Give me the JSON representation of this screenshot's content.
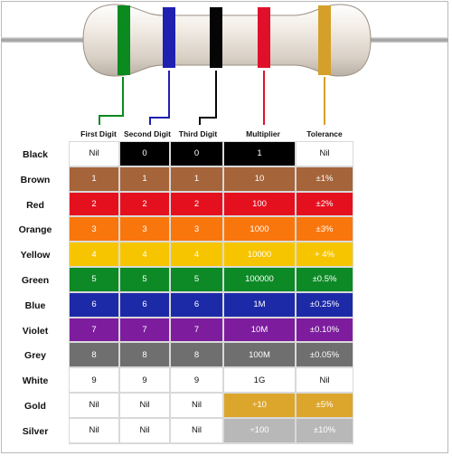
{
  "headers": {
    "first_digit": "First Digit",
    "second_digit": "Second Digit",
    "third_digit": "Third Digit",
    "multiplier": "Multiplier",
    "tolerance": "Tolerance"
  },
  "resistor_bands": [
    "#0a8a1f",
    "#1f1fb0",
    "#050505",
    "#e0102a",
    "#d4a02a"
  ],
  "rows": [
    {
      "name": "Black",
      "digits": [
        "Nil",
        "0",
        "0"
      ],
      "multiplier": "1",
      "tolerance": "Nil"
    },
    {
      "name": "Brown",
      "digits": [
        "1",
        "1",
        "1"
      ],
      "multiplier": "10",
      "tolerance": "±1%"
    },
    {
      "name": "Red",
      "digits": [
        "2",
        "2",
        "2"
      ],
      "multiplier": "100",
      "tolerance": "±2%"
    },
    {
      "name": "Orange",
      "digits": [
        "3",
        "3",
        "3"
      ],
      "multiplier": "1000",
      "tolerance": "±3%"
    },
    {
      "name": "Yellow",
      "digits": [
        "4",
        "4",
        "4"
      ],
      "multiplier": "10000",
      "tolerance": "+ 4%"
    },
    {
      "name": "Green",
      "digits": [
        "5",
        "5",
        "5"
      ],
      "multiplier": "100000",
      "tolerance": "±0.5%"
    },
    {
      "name": "Blue",
      "digits": [
        "6",
        "6",
        "6"
      ],
      "multiplier": "1M",
      "tolerance": "±0.25%"
    },
    {
      "name": "Violet",
      "digits": [
        "7",
        "7",
        "7"
      ],
      "multiplier": "10M",
      "tolerance": "±0.10%"
    },
    {
      "name": "Grey",
      "digits": [
        "8",
        "8",
        "8"
      ],
      "multiplier": "100M",
      "tolerance": "±0.05%"
    },
    {
      "name": "White",
      "digits": [
        "9",
        "9",
        "9"
      ],
      "multiplier": "1G",
      "tolerance": "Nil"
    },
    {
      "name": "Gold",
      "digits": [
        "Nil",
        "Nil",
        "Nil"
      ],
      "multiplier": "÷10",
      "tolerance": "±5%"
    },
    {
      "name": "Silver",
      "digits": [
        "Nil",
        "Nil",
        "Nil"
      ],
      "multiplier": "÷100",
      "tolerance": "±10%"
    }
  ],
  "colors": {
    "Black": {
      "digit_bg": "#000000",
      "digit_fg": "#ffffff",
      "mult_bg": "#000000",
      "mult_fg": "#ffffff",
      "tol_bg": "#ffffff",
      "tol_fg": "#111111"
    },
    "Brown": {
      "digit_bg": "#a5643a",
      "digit_fg": "#ffffff",
      "mult_bg": "#a5643a",
      "mult_fg": "#ffffff",
      "tol_bg": "#a5643a",
      "tol_fg": "#ffffff"
    },
    "Red": {
      "digit_bg": "#e5101e",
      "digit_fg": "#ffffff",
      "mult_bg": "#e5101e",
      "mult_fg": "#ffffff",
      "tol_bg": "#e5101e",
      "tol_fg": "#ffffff"
    },
    "Orange": {
      "digit_bg": "#f9760d",
      "digit_fg": "#ffffff",
      "mult_bg": "#f9760d",
      "mult_fg": "#ffffff",
      "tol_bg": "#f9760d",
      "tol_fg": "#ffffff"
    },
    "Yellow": {
      "digit_bg": "#f7c500",
      "digit_fg": "#ffffff",
      "mult_bg": "#f7c500",
      "mult_fg": "#ffffff",
      "tol_bg": "#f7c500",
      "tol_fg": "#ffffff"
    },
    "Green": {
      "digit_bg": "#0d8a26",
      "digit_fg": "#ffffff",
      "mult_bg": "#0d8a26",
      "mult_fg": "#ffffff",
      "tol_bg": "#0d8a26",
      "tol_fg": "#ffffff"
    },
    "Blue": {
      "digit_bg": "#1c2aa8",
      "digit_fg": "#ffffff",
      "mult_bg": "#1c2aa8",
      "mult_fg": "#ffffff",
      "tol_bg": "#1c2aa8",
      "tol_fg": "#ffffff"
    },
    "Violet": {
      "digit_bg": "#7d1d9e",
      "digit_fg": "#ffffff",
      "mult_bg": "#7d1d9e",
      "mult_fg": "#ffffff",
      "tol_bg": "#7d1d9e",
      "tol_fg": "#ffffff"
    },
    "Grey": {
      "digit_bg": "#6f6f6f",
      "digit_fg": "#ffffff",
      "mult_bg": "#6f6f6f",
      "mult_fg": "#ffffff",
      "tol_bg": "#6f6f6f",
      "tol_fg": "#ffffff"
    },
    "White": {
      "digit_bg": "#ffffff",
      "digit_fg": "#111111",
      "mult_bg": "#ffffff",
      "mult_fg": "#111111",
      "tol_bg": "#ffffff",
      "tol_fg": "#111111"
    },
    "Gold": {
      "digit_bg": "#ffffff",
      "digit_fg": "#111111",
      "mult_bg": "#dca62d",
      "mult_fg": "#ffffff",
      "tol_bg": "#dca62d",
      "tol_fg": "#ffffff"
    },
    "Silver": {
      "digit_bg": "#ffffff",
      "digit_fg": "#111111",
      "mult_bg": "#b8b8b8",
      "mult_fg": "#ffffff",
      "tol_bg": "#b8b8b8",
      "tol_fg": "#ffffff"
    }
  }
}
